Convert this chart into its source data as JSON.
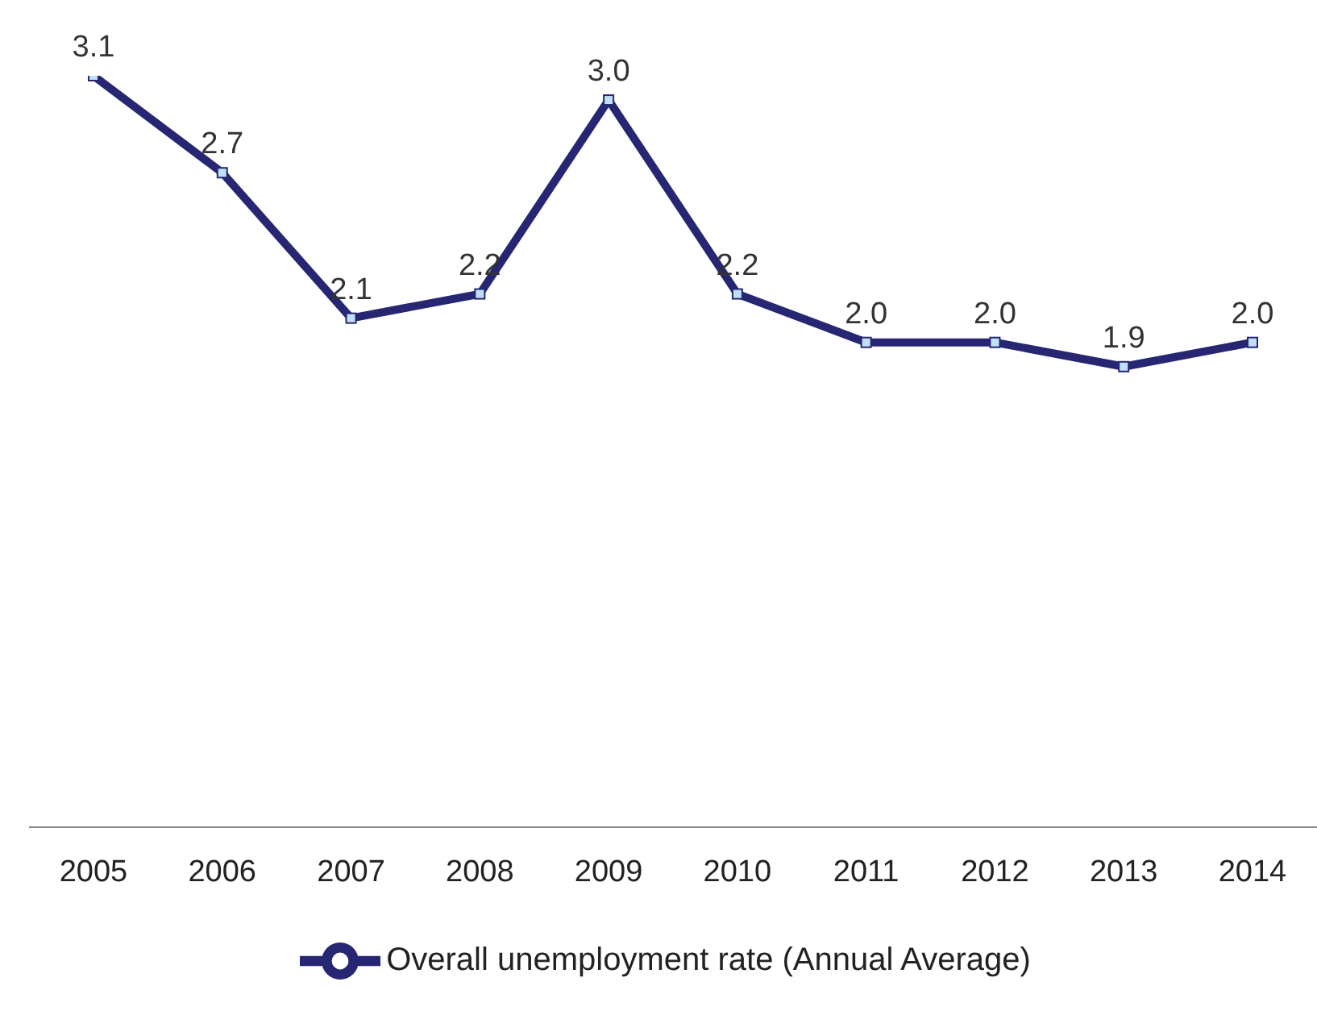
{
  "chart_data": {
    "type": "line",
    "categories": [
      "2005",
      "2006",
      "2007",
      "2008",
      "2009",
      "2010",
      "2011",
      "2012",
      "2013",
      "2014"
    ],
    "series": [
      {
        "name": "Overall unemployment rate (Annual Average)",
        "color": "#262673",
        "values": [
          3.1,
          2.7,
          2.1,
          2.2,
          3.0,
          2.2,
          2.0,
          2.0,
          1.9,
          2.0
        ],
        "value_labels": [
          "3.1",
          "2.7",
          "2.1",
          "2.2",
          "3.0",
          "2.2",
          "2.0",
          "2.0",
          "1.9",
          "2.0"
        ]
      }
    ],
    "marker": "square",
    "line_style": "solid",
    "legend": "bottom",
    "grid": false
  }
}
